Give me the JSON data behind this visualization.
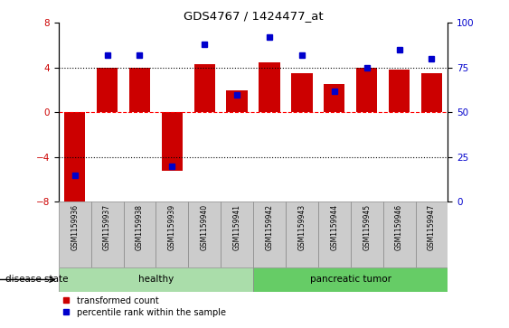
{
  "title": "GDS4767 / 1424477_at",
  "samples": [
    "GSM1159936",
    "GSM1159937",
    "GSM1159938",
    "GSM1159939",
    "GSM1159940",
    "GSM1159941",
    "GSM1159942",
    "GSM1159943",
    "GSM1159944",
    "GSM1159945",
    "GSM1159946",
    "GSM1159947"
  ],
  "bar_values": [
    -8.0,
    4.0,
    4.0,
    -5.2,
    4.3,
    2.0,
    4.5,
    3.5,
    2.5,
    4.0,
    3.8,
    3.5
  ],
  "percentile_values": [
    15,
    82,
    82,
    20,
    88,
    60,
    92,
    82,
    62,
    75,
    85,
    80
  ],
  "bar_color": "#cc0000",
  "dot_color": "#0000cc",
  "ylim": [
    -8,
    8
  ],
  "yticks_left": [
    -8,
    -4,
    0,
    4,
    8
  ],
  "yticks_right": [
    0,
    25,
    50,
    75,
    100
  ],
  "groups": [
    {
      "label": "healthy",
      "start": 0,
      "end": 5,
      "color": "#aaddaa"
    },
    {
      "label": "pancreatic tumor",
      "start": 6,
      "end": 11,
      "color": "#66cc66"
    }
  ],
  "disease_state_label": "disease state",
  "legend_bar_label": "transformed count",
  "legend_dot_label": "percentile rank within the sample",
  "background_color": "#ffffff",
  "plot_bg_color": "#ffffff",
  "right_axis_color": "#0000cc",
  "left_axis_color": "#cc0000",
  "xtick_box_color": "#cccccc",
  "xtick_box_edge": "#888888"
}
